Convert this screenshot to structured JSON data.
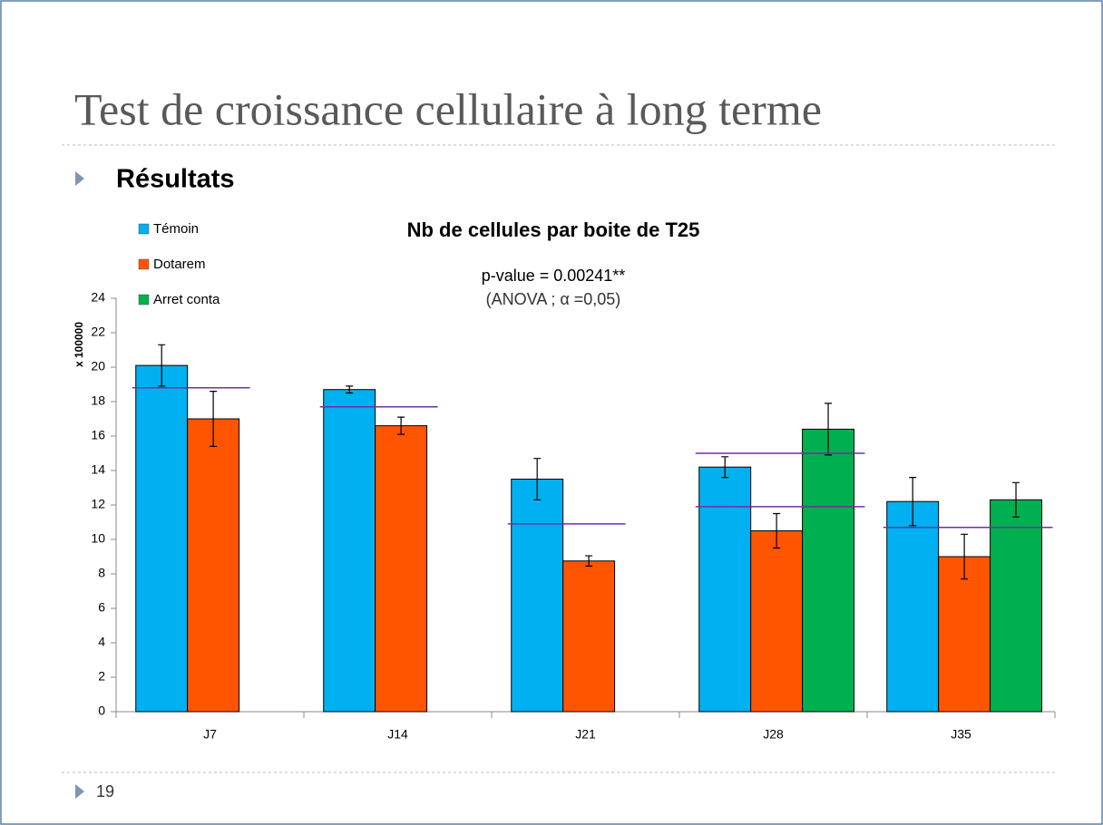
{
  "slide": {
    "title": "Test de croissance cellulaire à long terme",
    "bullet": "Résultats",
    "page_number": "19"
  },
  "chart_data": {
    "type": "bar",
    "title": "Nb de cellules par boite de T25",
    "annotations": [
      "p-value = 0.00241**",
      "(ANOVA ; α =0,05)"
    ],
    "y_label": "x 100000",
    "categories": [
      "J7",
      "J14",
      "J21",
      "J28",
      "J35"
    ],
    "series": [
      {
        "name": "Témoin",
        "color": "#00b0f0",
        "values": [
          20.1,
          18.7,
          13.5,
          14.2,
          12.2
        ],
        "errors": [
          1.2,
          0.2,
          1.2,
          0.6,
          1.4
        ]
      },
      {
        "name": "Dotarem",
        "color": "#ff5500",
        "values": [
          17.0,
          16.6,
          8.75,
          10.5,
          9.0
        ],
        "errors": [
          1.6,
          0.5,
          0.3,
          1.0,
          1.3
        ]
      },
      {
        "name": "Arret conta",
        "color": "#00b050",
        "values": [
          null,
          null,
          null,
          16.4,
          12.3
        ],
        "errors": [
          null,
          null,
          null,
          1.5,
          1.0
        ]
      }
    ],
    "reference_lines": [
      [
        18.8
      ],
      [
        17.7
      ],
      [
        10.9
      ],
      [
        15.0,
        11.9
      ],
      [
        10.7
      ]
    ],
    "reference_color": "#7030a0",
    "ylim": [
      0,
      24
    ],
    "yticks": [
      0,
      2,
      4,
      6,
      8,
      10,
      12,
      14,
      16,
      18,
      20,
      22,
      24
    ],
    "legend": "top-left"
  }
}
